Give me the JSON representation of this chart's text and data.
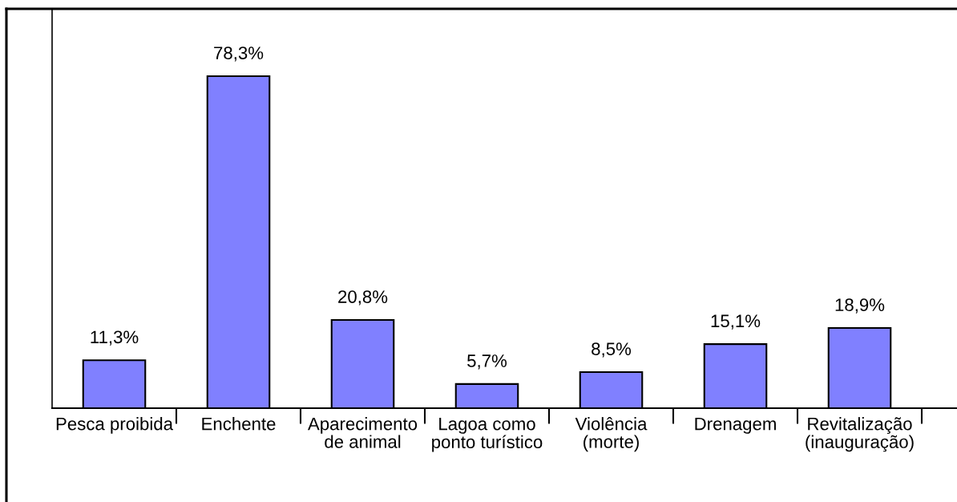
{
  "chart_data": {
    "type": "bar",
    "categories": [
      "Pesca proibida",
      "Enchente",
      "Aparecimento\nde animal",
      "Lagoa como\nponto turístico",
      "Violência\n(morte)",
      "Drenagem",
      "Revitalização\n(inauguração)"
    ],
    "values": [
      11.3,
      78.3,
      20.8,
      5.7,
      8.5,
      15.1,
      18.9
    ],
    "value_labels": [
      "11,3%",
      "78,3%",
      "20,8%",
      "5,7%",
      "8,5%",
      "15,1%",
      "18,9%"
    ],
    "color": "#8080ff",
    "ylim": [
      0,
      94
    ],
    "tick_labels": "x"
  }
}
